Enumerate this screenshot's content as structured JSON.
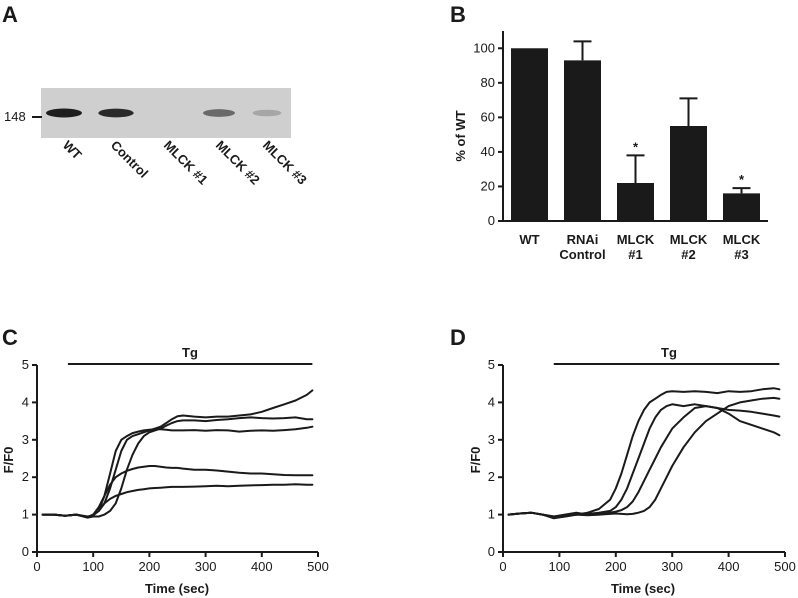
{
  "panel_a": {
    "letter": "A",
    "marker": "148",
    "lanes": [
      "WT",
      "Control",
      "MLCK #1",
      "MLCK #2",
      "MLCK #3"
    ],
    "band_intensity": [
      1.0,
      0.93,
      0.0,
      0.55,
      0.2
    ]
  },
  "panel_b": {
    "letter": "B"
  },
  "panel_c": {
    "letter": "C",
    "bar_label": "Tg"
  },
  "panel_d": {
    "letter": "D",
    "bar_label": "Tg"
  },
  "chart_data": [
    {
      "panel": "B",
      "type": "bar",
      "categories": [
        [
          "WT"
        ],
        [
          "RNAi",
          "Control"
        ],
        [
          "MLCK",
          "#1"
        ],
        [
          "MLCK",
          "#2"
        ],
        [
          "MLCK",
          "#3"
        ]
      ],
      "values": [
        100,
        93,
        22,
        55,
        16
      ],
      "errors": [
        0,
        11,
        16,
        16,
        3
      ],
      "significance": [
        "",
        "",
        "*",
        "",
        "*"
      ],
      "ylabel": "% of WT",
      "ylim": [
        0,
        110
      ],
      "yticks": [
        0,
        20,
        40,
        60,
        80,
        100
      ]
    },
    {
      "panel": "C",
      "type": "line",
      "xlabel": "Time (sec)",
      "ylabel": "F/F0",
      "xlim": [
        0,
        500
      ],
      "ylim": [
        0,
        5
      ],
      "xticks": [
        0,
        100,
        200,
        300,
        400,
        500
      ],
      "yticks": [
        0,
        1,
        2,
        3,
        4,
        5
      ],
      "treatment_bar": {
        "label": "Tg",
        "from": 55,
        "to": 490
      },
      "series": [
        {
          "x": [
            10,
            30,
            50,
            70,
            90,
            100,
            110,
            120,
            130,
            140,
            150,
            160,
            170,
            180,
            190,
            200,
            210,
            220,
            230,
            240,
            250,
            260,
            280,
            300,
            320,
            340,
            360,
            380,
            400,
            420,
            440,
            460,
            480,
            490
          ],
          "y": [
            1.0,
            1.0,
            0.97,
            1.0,
            0.95,
            0.98,
            1.1,
            1.5,
            2.1,
            2.7,
            3.0,
            3.1,
            3.18,
            3.22,
            3.25,
            3.27,
            3.28,
            3.28,
            3.27,
            3.25,
            3.25,
            3.25,
            3.26,
            3.24,
            3.26,
            3.25,
            3.22,
            3.24,
            3.25,
            3.24,
            3.26,
            3.28,
            3.32,
            3.35
          ]
        },
        {
          "x": [
            10,
            30,
            50,
            70,
            90,
            100,
            110,
            120,
            130,
            140,
            150,
            160,
            170,
            180,
            190,
            200,
            210,
            220,
            230,
            240,
            250,
            260,
            280,
            300,
            320,
            340,
            360,
            380,
            400,
            420,
            440,
            460,
            480,
            490
          ],
          "y": [
            1.0,
            1.0,
            0.97,
            1.0,
            0.93,
            1.0,
            1.1,
            1.3,
            1.7,
            2.2,
            2.7,
            3.0,
            3.1,
            3.15,
            3.2,
            3.25,
            3.3,
            3.35,
            3.45,
            3.55,
            3.63,
            3.65,
            3.62,
            3.6,
            3.62,
            3.62,
            3.65,
            3.68,
            3.75,
            3.85,
            3.95,
            4.05,
            4.2,
            4.32
          ]
        },
        {
          "x": [
            10,
            30,
            50,
            70,
            90,
            100,
            110,
            120,
            130,
            140,
            150,
            160,
            170,
            180,
            190,
            200,
            210,
            220,
            230,
            240,
            250,
            260,
            280,
            300,
            320,
            340,
            360,
            380,
            400,
            420,
            440,
            460,
            480,
            490
          ],
          "y": [
            1.0,
            1.0,
            0.97,
            1.0,
            0.92,
            0.95,
            0.95,
            1.0,
            1.1,
            1.3,
            1.7,
            2.2,
            2.6,
            2.9,
            3.1,
            3.2,
            3.25,
            3.3,
            3.38,
            3.45,
            3.5,
            3.52,
            3.52,
            3.5,
            3.53,
            3.55,
            3.58,
            3.6,
            3.58,
            3.57,
            3.58,
            3.6,
            3.55,
            3.55
          ]
        },
        {
          "x": [
            10,
            30,
            50,
            70,
            90,
            100,
            110,
            120,
            130,
            140,
            150,
            160,
            170,
            180,
            190,
            200,
            210,
            220,
            230,
            240,
            250,
            260,
            280,
            300,
            320,
            340,
            360,
            380,
            400,
            420,
            440,
            460,
            480,
            490
          ],
          "y": [
            1.0,
            1.0,
            0.97,
            1.0,
            0.93,
            1.0,
            1.2,
            1.5,
            1.8,
            2.0,
            2.1,
            2.17,
            2.22,
            2.26,
            2.28,
            2.3,
            2.3,
            2.28,
            2.26,
            2.25,
            2.25,
            2.23,
            2.2,
            2.2,
            2.18,
            2.15,
            2.12,
            2.1,
            2.1,
            2.08,
            2.06,
            2.05,
            2.05,
            2.05
          ]
        },
        {
          "x": [
            10,
            30,
            50,
            70,
            90,
            100,
            110,
            120,
            130,
            140,
            150,
            160,
            170,
            180,
            190,
            200,
            210,
            220,
            230,
            240,
            250,
            260,
            280,
            300,
            320,
            340,
            360,
            380,
            400,
            420,
            440,
            460,
            480,
            490
          ],
          "y": [
            1.0,
            1.0,
            0.97,
            1.0,
            0.93,
            1.0,
            1.1,
            1.3,
            1.42,
            1.5,
            1.55,
            1.6,
            1.63,
            1.66,
            1.68,
            1.7,
            1.71,
            1.72,
            1.73,
            1.74,
            1.74,
            1.74,
            1.75,
            1.76,
            1.77,
            1.76,
            1.77,
            1.78,
            1.79,
            1.8,
            1.8,
            1.81,
            1.8,
            1.8
          ]
        }
      ]
    },
    {
      "panel": "D",
      "type": "line",
      "xlabel": "Time (sec)",
      "ylabel": "F/F0",
      "xlim": [
        0,
        500
      ],
      "ylim": [
        0,
        5
      ],
      "xticks": [
        0,
        100,
        200,
        300,
        400,
        500
      ],
      "yticks": [
        0,
        1,
        2,
        3,
        4,
        5
      ],
      "treatment_bar": {
        "label": "Tg",
        "from": 90,
        "to": 490
      },
      "series": [
        {
          "x": [
            10,
            30,
            50,
            70,
            90,
            110,
            130,
            150,
            170,
            190,
            200,
            210,
            220,
            230,
            240,
            250,
            260,
            270,
            280,
            290,
            300,
            320,
            340,
            360,
            380,
            400,
            420,
            440,
            460,
            480,
            490
          ],
          "y": [
            1.0,
            1.03,
            1.05,
            1.0,
            0.92,
            0.95,
            1.0,
            1.05,
            1.15,
            1.4,
            1.7,
            2.1,
            2.6,
            3.1,
            3.5,
            3.8,
            4.0,
            4.1,
            4.2,
            4.28,
            4.3,
            4.28,
            4.3,
            4.28,
            4.25,
            4.3,
            4.28,
            4.3,
            4.35,
            4.38,
            4.35
          ]
        },
        {
          "x": [
            10,
            30,
            50,
            70,
            90,
            110,
            130,
            150,
            170,
            190,
            200,
            210,
            220,
            230,
            240,
            250,
            260,
            270,
            280,
            290,
            300,
            320,
            340,
            360,
            380,
            400,
            420,
            440,
            460,
            480,
            490
          ],
          "y": [
            1.0,
            1.03,
            1.05,
            1.0,
            0.9,
            0.95,
            1.0,
            1.02,
            1.05,
            1.1,
            1.2,
            1.4,
            1.7,
            2.1,
            2.5,
            2.9,
            3.3,
            3.6,
            3.8,
            3.9,
            3.95,
            3.9,
            3.95,
            3.9,
            3.85,
            3.7,
            3.5,
            3.4,
            3.3,
            3.2,
            3.12
          ]
        },
        {
          "x": [
            10,
            30,
            50,
            70,
            90,
            110,
            130,
            150,
            170,
            190,
            200,
            210,
            220,
            230,
            240,
            250,
            260,
            270,
            280,
            290,
            300,
            320,
            340,
            360,
            380,
            400,
            420,
            440,
            460,
            480,
            490
          ],
          "y": [
            1.0,
            1.03,
            1.05,
            1.0,
            0.95,
            1.0,
            1.05,
            1.0,
            1.0,
            1.05,
            1.08,
            1.12,
            1.2,
            1.35,
            1.6,
            1.9,
            2.2,
            2.5,
            2.8,
            3.05,
            3.3,
            3.6,
            3.85,
            3.9,
            3.85,
            3.8,
            3.78,
            3.75,
            3.7,
            3.65,
            3.62
          ]
        },
        {
          "x": [
            10,
            30,
            50,
            70,
            90,
            110,
            130,
            150,
            170,
            190,
            200,
            210,
            220,
            230,
            240,
            250,
            260,
            270,
            280,
            290,
            300,
            320,
            340,
            360,
            380,
            400,
            420,
            440,
            460,
            480,
            490
          ],
          "y": [
            1.0,
            1.03,
            1.05,
            1.0,
            0.95,
            0.97,
            1.0,
            0.98,
            1.0,
            1.02,
            1.03,
            1.02,
            1.01,
            1.02,
            1.05,
            1.1,
            1.2,
            1.4,
            1.7,
            2.0,
            2.3,
            2.8,
            3.2,
            3.5,
            3.7,
            3.9,
            4.0,
            4.05,
            4.1,
            4.12,
            4.1
          ]
        }
      ]
    }
  ]
}
